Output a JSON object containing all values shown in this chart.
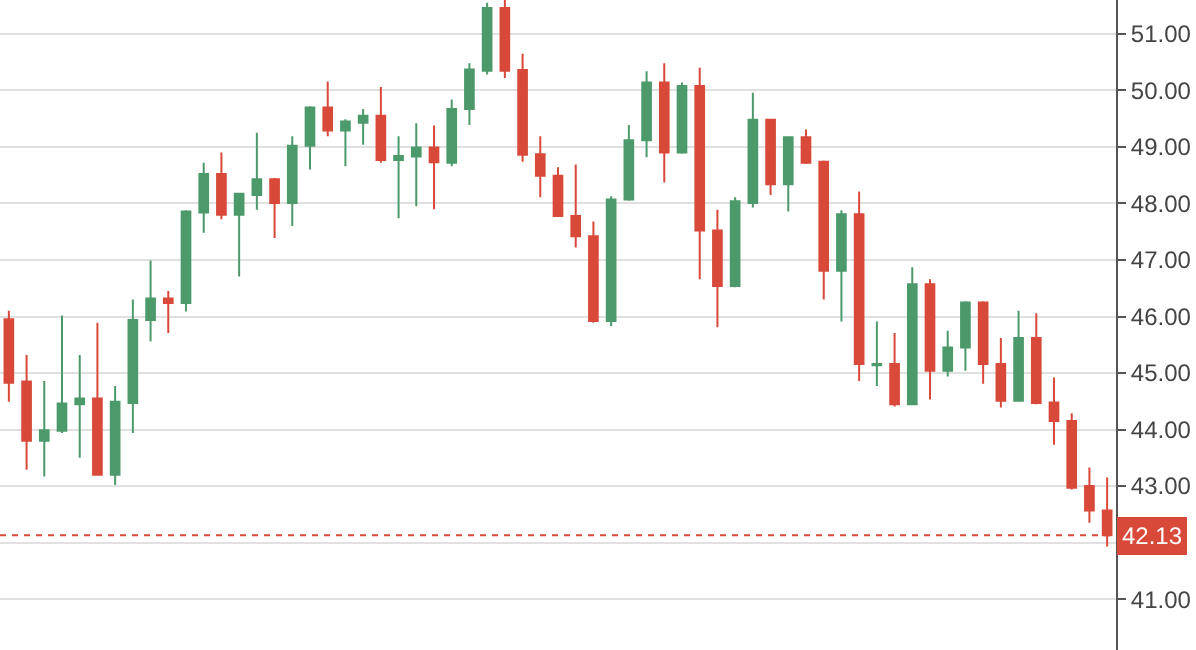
{
  "chart_data": {
    "type": "candlestick",
    "categories": [
      null,
      null,
      null,
      null,
      null,
      null,
      null,
      null,
      null,
      null,
      null,
      null,
      null,
      null,
      null,
      null,
      null,
      null,
      null,
      null,
      null,
      null,
      null,
      null,
      null,
      null,
      null,
      null,
      null,
      null,
      null,
      null,
      null,
      null,
      null,
      null,
      null,
      null,
      null,
      null,
      null,
      null,
      null,
      null,
      null,
      null,
      null,
      null,
      null,
      null,
      null,
      null,
      null,
      null,
      null,
      null,
      null,
      null,
      null,
      null,
      null,
      null,
      null
    ],
    "ohlc": [
      [
        45.95,
        46.1,
        44.49,
        44.83
      ],
      [
        44.85,
        45.32,
        43.29,
        43.8
      ],
      [
        43.8,
        44.86,
        43.17,
        43.99
      ],
      [
        43.98,
        46.02,
        43.94,
        44.46
      ],
      [
        44.45,
        45.32,
        43.5,
        44.55
      ],
      [
        44.55,
        45.89,
        43.2,
        43.2
      ],
      [
        43.2,
        44.77,
        43.02,
        44.49
      ],
      [
        44.47,
        46.3,
        43.94,
        45.94
      ],
      [
        45.94,
        46.99,
        45.56,
        46.32
      ],
      [
        46.32,
        46.45,
        45.71,
        46.24
      ],
      [
        46.24,
        47.88,
        46.09,
        47.86
      ],
      [
        47.84,
        48.72,
        47.48,
        48.52
      ],
      [
        48.52,
        48.9,
        47.72,
        47.8
      ],
      [
        47.8,
        48.19,
        46.71,
        48.17
      ],
      [
        48.15,
        49.25,
        47.89,
        48.43
      ],
      [
        48.43,
        48.45,
        47.39,
        48.01
      ],
      [
        48.01,
        49.19,
        47.6,
        49.02
      ],
      [
        49.02,
        49.72,
        48.6,
        49.7
      ],
      [
        49.7,
        50.16,
        49.19,
        49.29
      ],
      [
        49.29,
        49.49,
        48.66,
        49.45
      ],
      [
        49.43,
        49.67,
        49.04,
        49.55
      ],
      [
        49.55,
        50.06,
        48.72,
        48.77
      ],
      [
        48.77,
        49.19,
        47.74,
        48.84
      ],
      [
        48.83,
        49.42,
        47.95,
        48.99
      ],
      [
        48.99,
        49.38,
        47.9,
        48.73
      ],
      [
        48.72,
        49.84,
        48.66,
        49.67
      ],
      [
        49.67,
        50.48,
        49.39,
        50.37
      ],
      [
        50.35,
        51.55,
        50.28,
        51.46
      ],
      [
        51.46,
        51.6,
        50.22,
        50.35
      ],
      [
        50.36,
        50.65,
        48.74,
        48.86
      ],
      [
        48.87,
        49.19,
        48.11,
        48.49
      ],
      [
        48.49,
        48.64,
        47.76,
        47.78
      ],
      [
        47.78,
        48.69,
        47.22,
        47.42
      ],
      [
        47.42,
        47.68,
        45.89,
        45.92
      ],
      [
        45.92,
        48.13,
        45.83,
        48.07
      ],
      [
        48.07,
        49.39,
        48.05,
        49.12
      ],
      [
        49.12,
        50.34,
        48.82,
        50.14
      ],
      [
        50.14,
        50.48,
        48.37,
        48.9
      ],
      [
        48.9,
        50.14,
        48.88,
        50.08
      ],
      [
        50.08,
        50.4,
        46.66,
        47.52
      ],
      [
        47.52,
        47.89,
        45.81,
        46.54
      ],
      [
        46.54,
        48.11,
        46.52,
        48.04
      ],
      [
        48.01,
        49.96,
        47.93,
        49.48
      ],
      [
        49.48,
        49.5,
        48.15,
        48.34
      ],
      [
        48.34,
        49.19,
        47.86,
        49.17
      ],
      [
        49.17,
        49.31,
        48.7,
        48.72
      ],
      [
        48.74,
        48.76,
        46.3,
        46.81
      ],
      [
        46.81,
        47.88,
        45.91,
        47.81
      ],
      [
        47.81,
        48.21,
        44.86,
        45.16
      ],
      [
        45.14,
        45.91,
        44.77,
        45.16
      ],
      [
        45.16,
        45.71,
        44.41,
        44.45
      ],
      [
        44.45,
        46.87,
        44.43,
        46.57
      ],
      [
        46.57,
        46.66,
        44.53,
        45.04
      ],
      [
        45.04,
        45.75,
        44.94,
        45.45
      ],
      [
        45.45,
        46.27,
        45.04,
        46.25
      ],
      [
        46.25,
        46.27,
        44.81,
        45.16
      ],
      [
        45.16,
        45.62,
        44.39,
        44.51
      ],
      [
        44.51,
        46.1,
        44.49,
        45.62
      ],
      [
        45.62,
        46.06,
        44.45,
        44.47
      ],
      [
        44.48,
        44.92,
        43.73,
        44.15
      ],
      [
        44.15,
        44.29,
        42.94,
        42.97
      ],
      [
        43.0,
        43.33,
        42.35,
        42.57
      ],
      [
        42.57,
        43.15,
        41.93,
        42.13
      ]
    ],
    "colors": [
      "#d9493a",
      "#d9493a",
      "#4c9a6c",
      "#4c9a6c",
      "#4c9a6c",
      "#d9493a",
      "#4c9a6c",
      "#4c9a6c",
      "#4c9a6c",
      "#d9493a",
      "#4c9a6c",
      "#4c9a6c",
      "#d9493a",
      "#4c9a6c",
      "#4c9a6c",
      "#d9493a",
      "#4c9a6c",
      "#4c9a6c",
      "#d9493a",
      "#4c9a6c",
      "#4c9a6c",
      "#d9493a",
      "#4c9a6c",
      "#4c9a6c",
      "#d9493a",
      "#4c9a6c",
      "#4c9a6c",
      "#4c9a6c",
      "#d9493a",
      "#d9493a",
      "#d9493a",
      "#d9493a",
      "#d9493a",
      "#d9493a",
      "#4c9a6c",
      "#4c9a6c",
      "#4c9a6c",
      "#d9493a",
      "#4c9a6c",
      "#d9493a",
      "#d9493a",
      "#4c9a6c",
      "#4c9a6c",
      "#d9493a",
      "#4c9a6c",
      "#d9493a",
      "#d9493a",
      "#4c9a6c",
      "#d9493a",
      "#4c9a6c",
      "#d9493a",
      "#4c9a6c",
      "#d9493a",
      "#4c9a6c",
      "#4c9a6c",
      "#d9493a",
      "#d9493a",
      "#4c9a6c",
      "#d9493a",
      "#d9493a",
      "#d9493a",
      "#d9493a",
      "#d9493a"
    ],
    "ylim": [
      40.1,
      51.6
    ],
    "yticks": [
      {
        "value": 41,
        "label": "41.00"
      },
      {
        "value": 42,
        "label": null
      },
      {
        "value": 43,
        "label": "43.00"
      },
      {
        "value": 44,
        "label": "44.00"
      },
      {
        "value": 45,
        "label": "45.00"
      },
      {
        "value": 46,
        "label": "46.00"
      },
      {
        "value": 47,
        "label": "47.00"
      },
      {
        "value": 48,
        "label": "48.00"
      },
      {
        "value": 49,
        "label": "49.00"
      },
      {
        "value": 50,
        "label": "50.00"
      },
      {
        "value": 51,
        "label": "51.00"
      }
    ],
    "grid": "y",
    "tick_labels": "y",
    "ref_lines": [
      {
        "axis": "y",
        "value": 42.13,
        "label": "42.13",
        "color": "#d9493a",
        "line_style": "dotted"
      }
    ]
  }
}
